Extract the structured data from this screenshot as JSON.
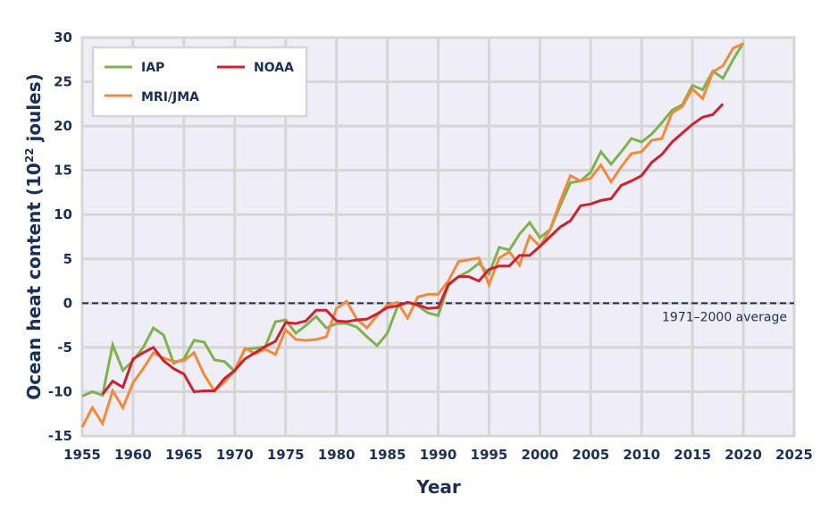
{
  "chart_data": {
    "type": "line",
    "title": "",
    "xlabel": "Year",
    "ylabel": "Ocean heat content (10",
    "ylabel_superscript": "22",
    "ylabel_suffix": " joules)",
    "xlim": [
      1955,
      2025
    ],
    "ylim": [
      -15,
      30
    ],
    "xticks": [
      "1955",
      "1960",
      "1965",
      "1970",
      "1975",
      "1980",
      "1985",
      "1990",
      "1995",
      "2000",
      "2005",
      "2010",
      "2015",
      "2020",
      "2025"
    ],
    "yticks": [
      "-15",
      "-10",
      "-5",
      "0",
      "5",
      "10",
      "15",
      "20",
      "25",
      "30"
    ],
    "grid": true,
    "legend_position": "top-left",
    "reference_line": {
      "y": 0,
      "label": "1971–2000 average",
      "color": "#1b3055"
    },
    "series": [
      {
        "name": "IAP",
        "color": "#7fb24e",
        "start_year": 1955,
        "values": [
          -10.5,
          -10.0,
          -10.4,
          -4.7,
          -7.6,
          -6.5,
          -5.0,
          -2.8,
          -3.6,
          -6.8,
          -6.3,
          -4.2,
          -4.4,
          -6.4,
          -6.6,
          -7.7,
          -5.2,
          -5.1,
          -4.9,
          -2.1,
          -1.9,
          -3.4,
          -2.5,
          -1.5,
          -2.8,
          -2.3,
          -2.3,
          -2.7,
          -3.8,
          -4.8,
          -3.4,
          -0.4,
          0.1,
          -0.3,
          -1.1,
          -1.4,
          2.0,
          3.0,
          3.6,
          4.5,
          3.3,
          6.3,
          6.0,
          7.8,
          9.1,
          7.4,
          8.3,
          11.0,
          13.6,
          13.8,
          14.8,
          17.1,
          15.7,
          17.1,
          18.6,
          18.2,
          19.1,
          20.4,
          21.8,
          22.4,
          24.6,
          24.1,
          26.2,
          25.4,
          27.5,
          29.4
        ]
      },
      {
        "name": "MRI/JMA",
        "color": "#f28a3c",
        "start_year": 1955,
        "values": [
          -14.0,
          -11.8,
          -13.6,
          -9.9,
          -11.8,
          -9.0,
          -7.4,
          -5.6,
          -6.2,
          -6.6,
          -6.5,
          -5.6,
          -8.1,
          -9.9,
          -8.9,
          -7.6,
          -5.1,
          -5.7,
          -5.2,
          -5.8,
          -3.0,
          -4.1,
          -4.2,
          -4.1,
          -3.8,
          -0.6,
          0.2,
          -1.8,
          -2.8,
          -1.4,
          -0.2,
          0.1,
          -1.7,
          0.7,
          1.0,
          1.0,
          2.5,
          4.7,
          4.9,
          5.1,
          2.1,
          5.1,
          5.8,
          4.3,
          7.6,
          6.4,
          8.3,
          11.5,
          14.4,
          13.8,
          14.1,
          15.6,
          13.7,
          15.4,
          16.9,
          17.1,
          18.4,
          18.6,
          21.5,
          22.2,
          24.2,
          23.1,
          26.1,
          26.8,
          28.8,
          29.3
        ]
      },
      {
        "name": "NOAA",
        "color": "#cc2230",
        "start_year": 1957,
        "values": [
          -10.3,
          -8.8,
          -9.5,
          -6.3,
          -5.6,
          -5.0,
          -6.5,
          -7.4,
          -8.0,
          -10.0,
          -9.9,
          -9.9,
          -8.5,
          -7.6,
          -6.3,
          -5.6,
          -4.9,
          -4.3,
          -2.2,
          -2.3,
          -2.0,
          -0.8,
          -0.8,
          -2.0,
          -2.1,
          -1.9,
          -1.8,
          -1.2,
          -0.5,
          -0.3,
          0.1,
          -0.2,
          -0.6,
          -0.5,
          2.1,
          3.0,
          3.0,
          2.5,
          3.8,
          4.2,
          4.2,
          5.4,
          5.4,
          6.4,
          7.5,
          8.6,
          9.3,
          11.0,
          11.2,
          11.6,
          11.8,
          13.3,
          13.8,
          14.4,
          15.9,
          16.8,
          18.2,
          19.2,
          20.2,
          21.0,
          21.3,
          22.5
        ]
      }
    ],
    "legend": [
      {
        "label": "IAP",
        "color": "#7fb24e"
      },
      {
        "label": "NOAA",
        "color": "#cc2230"
      },
      {
        "label": "MRI/JMA",
        "color": "#f28a3c"
      }
    ]
  }
}
